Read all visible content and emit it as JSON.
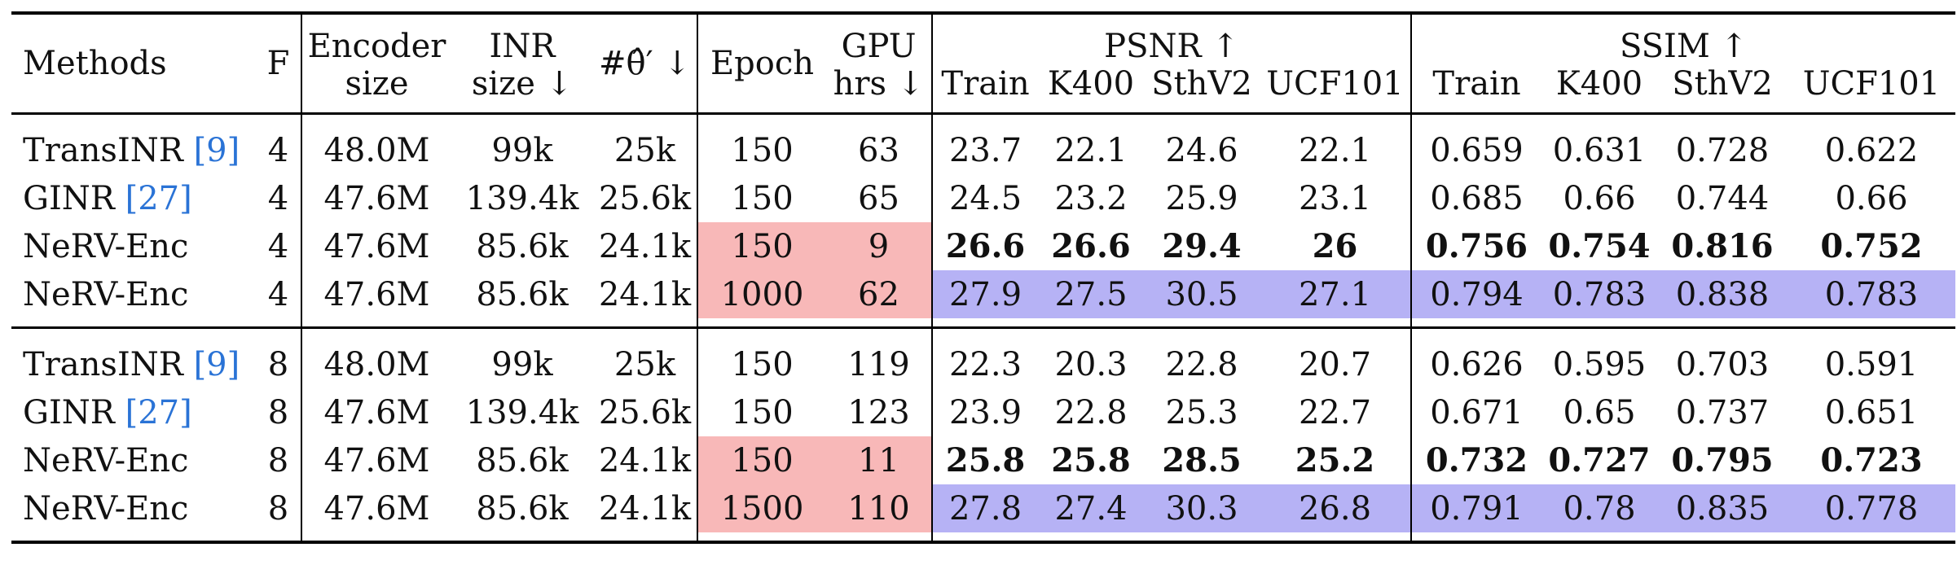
{
  "columns": {
    "methods": "Methods",
    "f": "F",
    "encoder_size_l1": "Encoder",
    "encoder_size_l2": "size",
    "inr_size_l1": "INR",
    "inr_size_l2": "size ↓",
    "theta": "#θ̂′ ↓",
    "epoch": "Epoch",
    "gpu_l1": "GPU",
    "gpu_l2": "hrs ↓",
    "psnr": "PSNR ↑",
    "ssim": "SSIM ↑",
    "sub": [
      "Train",
      "K400",
      "SthV2",
      "UCF101"
    ]
  },
  "groups": [
    {
      "rows": [
        {
          "method": "TransINR ",
          "ref": "[9]",
          "f": "4",
          "enc": "48.0M",
          "inr": "99k",
          "theta": "25k",
          "epoch": "150",
          "gpu": "63",
          "psnr": [
            "23.7",
            "22.1",
            "24.6",
            "22.1"
          ],
          "ssim": [
            "0.659",
            "0.631",
            "0.728",
            "0.622"
          ]
        },
        {
          "method": "GINR ",
          "ref": "[27]",
          "f": "4",
          "enc": "47.6M",
          "inr": "139.4k",
          "theta": "25.6k",
          "epoch": "150",
          "gpu": "65",
          "psnr": [
            "24.5",
            "23.2",
            "25.9",
            "23.1"
          ],
          "ssim": [
            "0.685",
            "0.66",
            "0.744",
            "0.66"
          ]
        },
        {
          "method": "NeRV-Enc",
          "ref": "",
          "f": "4",
          "enc": "47.6M",
          "inr": "85.6k",
          "theta": "24.1k",
          "epoch": "150",
          "gpu": "9",
          "psnr": [
            "26.6",
            "26.6",
            "29.4",
            "26"
          ],
          "ssim": [
            "0.756",
            "0.754",
            "0.816",
            "0.752"
          ]
        },
        {
          "method": "NeRV-Enc",
          "ref": "",
          "f": "4",
          "enc": "47.6M",
          "inr": "85.6k",
          "theta": "24.1k",
          "epoch": "1000",
          "gpu": "62",
          "psnr": [
            "27.9",
            "27.5",
            "30.5",
            "27.1"
          ],
          "ssim": [
            "0.794",
            "0.783",
            "0.838",
            "0.783"
          ]
        }
      ]
    },
    {
      "rows": [
        {
          "method": "TransINR ",
          "ref": "[9]",
          "f": "8",
          "enc": "48.0M",
          "inr": "99k",
          "theta": "25k",
          "epoch": "150",
          "gpu": "119",
          "psnr": [
            "22.3",
            "20.3",
            "22.8",
            "20.7"
          ],
          "ssim": [
            "0.626",
            "0.595",
            "0.703",
            "0.591"
          ]
        },
        {
          "method": "GINR ",
          "ref": "[27]",
          "f": "8",
          "enc": "47.6M",
          "inr": "139.4k",
          "theta": "25.6k",
          "epoch": "150",
          "gpu": "123",
          "psnr": [
            "23.9",
            "22.8",
            "25.3",
            "22.7"
          ],
          "ssim": [
            "0.671",
            "0.65",
            "0.737",
            "0.651"
          ]
        },
        {
          "method": "NeRV-Enc",
          "ref": "",
          "f": "8",
          "enc": "47.6M",
          "inr": "85.6k",
          "theta": "24.1k",
          "epoch": "150",
          "gpu": "11",
          "psnr": [
            "25.8",
            "25.8",
            "28.5",
            "25.2"
          ],
          "ssim": [
            "0.732",
            "0.727",
            "0.795",
            "0.723"
          ]
        },
        {
          "method": "NeRV-Enc",
          "ref": "",
          "f": "8",
          "enc": "47.6M",
          "inr": "85.6k",
          "theta": "24.1k",
          "epoch": "1500",
          "gpu": "110",
          "psnr": [
            "27.8",
            "27.4",
            "30.3",
            "26.8"
          ],
          "ssim": [
            "0.791",
            "0.78",
            "0.835",
            "0.778"
          ]
        }
      ]
    }
  ]
}
